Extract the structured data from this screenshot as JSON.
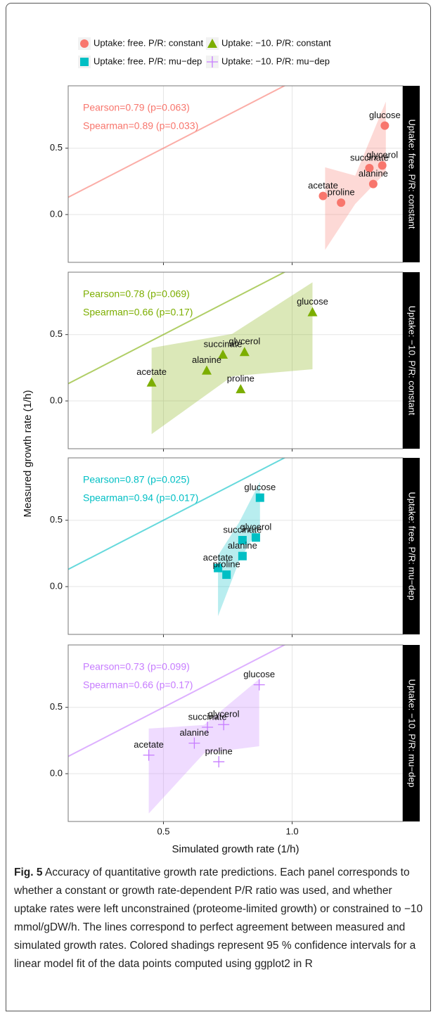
{
  "figure": {
    "xlabel": "Simulated growth rate (1/h)",
    "ylabel": "Measured growth rate (1/h)",
    "caption": {
      "label": "Fig. 5",
      "text": "Accuracy of quantitative growth rate predictions. Each panel corresponds to whether a constant or growth rate-dependent P/R ratio was used, and whether uptake rates were left unconstrained (proteome-limited growth) or constrained to −10 mmol/gDW/h. The lines correspond to perfect agreement between measured and simulated growth rates. Colored shadings represent 95 % confidence intervals for a linear model fit of the data points computed using ggplot2 in R"
    }
  },
  "chart_data": [
    {
      "type": "scatter",
      "strip_label": "Uptake: free. P/R: constant",
      "annotations": [
        "Pearson=0.79 (p=0.063)",
        "Spearman=0.89 (p=0.033)"
      ],
      "series": [
        {
          "name": "Uptake: free. P/R: constant",
          "color": "#f8766d",
          "marker": "circle",
          "point_labels": [
            "glucose",
            "glycerol",
            "succinate",
            "alanine",
            "acetate",
            "proline"
          ],
          "x": [
            1.36,
            1.35,
            1.3,
            1.315,
            1.12,
            1.19
          ],
          "values": [
            0.67,
            0.37,
            0.35,
            0.23,
            0.14,
            0.09
          ]
        }
      ],
      "ci_band": {
        "x": [
          1.128,
          1.245,
          1.364
        ],
        "lower": [
          -0.266,
          0.08,
          0.319
        ],
        "upper": [
          0.356,
          0.293,
          0.851
        ]
      },
      "identity_line": true,
      "xlim": [
        0.13,
        1.43
      ],
      "ylim": [
        -0.36,
        0.97
      ],
      "xticks": [
        0.5,
        {
          "value": 1,
          "label": "1.0"
        }
      ],
      "yticks": [
        {
          "value": 0,
          "label": "0.0"
        },
        0.5
      ],
      "grid": true
    },
    {
      "type": "scatter",
      "strip_label": "Uptake: −10. P/R: constant",
      "annotations": [
        "Pearson=0.78 (p=0.069)",
        "Spearman=0.66 (p=0.17)"
      ],
      "series": [
        {
          "name": "Uptake: −10. P/R: constant",
          "color": "#7cae00",
          "marker": "triangle",
          "point_labels": [
            "glucose",
            "glycerol",
            "succinate",
            "alanine",
            "acetate",
            "proline"
          ],
          "x": [
            1.079,
            0.815,
            0.731,
            0.668,
            0.454,
            0.8
          ],
          "values": [
            0.67,
            0.37,
            0.35,
            0.23,
            0.14,
            0.09
          ]
        }
      ],
      "ci_band": {
        "x": [
          0.454,
          0.767,
          1.079
        ],
        "lower": [
          -0.25,
          0.186,
          0.239
        ],
        "upper": [
          0.4,
          0.505,
          0.894
        ]
      },
      "identity_line": true,
      "xlim": [
        0.13,
        1.43
      ],
      "ylim": [
        -0.36,
        0.97
      ],
      "xticks": [
        0.5,
        {
          "value": 1,
          "label": "1.0"
        }
      ],
      "yticks": [
        {
          "value": 0,
          "label": "0.0"
        },
        0.5
      ],
      "grid": true
    },
    {
      "type": "scatter",
      "strip_label": "Uptake: free. P/R: mu−dep",
      "annotations": [
        "Pearson=0.87 (p=0.025)",
        "Spearman=0.94 (p=0.017)"
      ],
      "series": [
        {
          "name": "Uptake: free. P/R: mu−dep",
          "color": "#00bfc4",
          "marker": "square",
          "point_labels": [
            "glucose",
            "glycerol",
            "succinate",
            "alanine",
            "acetate",
            "proline"
          ],
          "x": [
            0.875,
            0.859,
            0.807,
            0.807,
            0.712,
            0.745
          ],
          "values": [
            0.67,
            0.37,
            0.35,
            0.23,
            0.14,
            0.09
          ]
        }
      ],
      "ci_band": {
        "x": [
          0.712,
          0.794,
          0.875
        ],
        "lower": [
          -0.223,
          0.191,
          0.46
        ],
        "upper": [
          0.234,
          0.484,
          0.79
        ]
      },
      "identity_line": true,
      "xlim": [
        0.13,
        1.43
      ],
      "ylim": [
        -0.36,
        0.97
      ],
      "xticks": [
        0.5,
        {
          "value": 1,
          "label": "1.0"
        }
      ],
      "yticks": [
        {
          "value": 0,
          "label": "0.0"
        },
        0.5
      ],
      "grid": true
    },
    {
      "type": "scatter",
      "strip_label": "Uptake: −10. P/R: mu−dep",
      "annotations": [
        "Pearson=0.73 (p=0.099)",
        "Spearman=0.66 (p=0.17)"
      ],
      "series": [
        {
          "name": "Uptake: −10. P/R: mu−dep",
          "color": "#c77cff",
          "marker": "plus",
          "point_labels": [
            "glucose",
            "glycerol",
            "succinate",
            "alanine",
            "acetate",
            "proline"
          ],
          "x": [
            0.872,
            0.734,
            0.671,
            0.62,
            0.443,
            0.715
          ],
          "values": [
            0.67,
            0.37,
            0.35,
            0.23,
            0.14,
            0.09
          ]
        }
      ],
      "ci_band": {
        "x": [
          0.443,
          0.658,
          0.872
        ],
        "lower": [
          -0.3,
          0.154,
          0.207
        ],
        "upper": [
          0.34,
          0.367,
          0.713
        ]
      },
      "identity_line": true,
      "xlim": [
        0.13,
        1.43
      ],
      "ylim": [
        -0.36,
        0.97
      ],
      "xticks": [
        0.5,
        {
          "value": 1,
          "label": "1.0"
        }
      ],
      "yticks": [
        {
          "value": 0,
          "label": "0.0"
        },
        0.5
      ],
      "grid": true
    }
  ]
}
